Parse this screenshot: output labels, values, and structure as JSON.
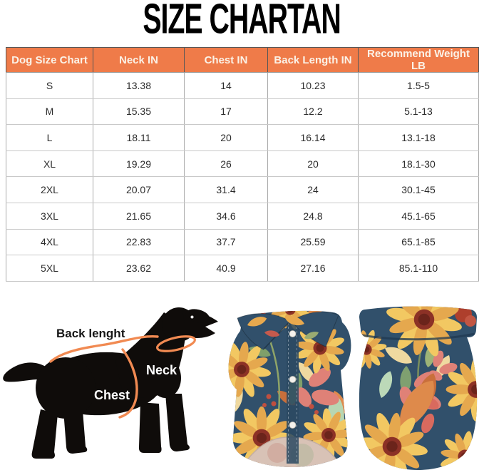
{
  "title": "SIZE CHARTAN",
  "table": {
    "headers": [
      "Dog Size Chart",
      "Neck IN",
      "Chest IN",
      "Back Length IN",
      "Recommend Weight LB"
    ],
    "rows": [
      [
        "S",
        "13.38",
        "14",
        "10.23",
        "1.5-5"
      ],
      [
        "M",
        "15.35",
        "17",
        "12.2",
        "5.1-13"
      ],
      [
        "L",
        "18.11",
        "20",
        "16.14",
        "13.1-18"
      ],
      [
        "XL",
        "19.29",
        "26",
        "20",
        "18.1-30"
      ],
      [
        "2XL",
        "20.07",
        "31.4",
        "24",
        "30.1-45"
      ],
      [
        "3XL",
        "21.65",
        "34.6",
        "24.8",
        "45.1-65"
      ],
      [
        "4XL",
        "22.83",
        "37.7",
        "25.59",
        "65.1-85"
      ],
      [
        "5XL",
        "23.62",
        "40.9",
        "27.16",
        "85.1-110"
      ]
    ]
  },
  "guide": {
    "back_length_label": "Back lenght",
    "neck_label": "Neck",
    "chest_label": "Chest"
  },
  "products": {
    "front_shirt": "floral-dog-shirt-front-view",
    "back_shirt": "floral-dog-shirt-back-view"
  },
  "colors": {
    "header_bg": "#EF7B49",
    "header_text": "#FBF2E7",
    "measure_line": "#F18A52",
    "silhouette": "#0F0C0A",
    "shirt_navy": "#31506B",
    "sunflower_yellow": "#F2C862",
    "sunflower_center": "#8C3126",
    "coral": "#DF8177",
    "leaf_green": "#7FA06A"
  }
}
